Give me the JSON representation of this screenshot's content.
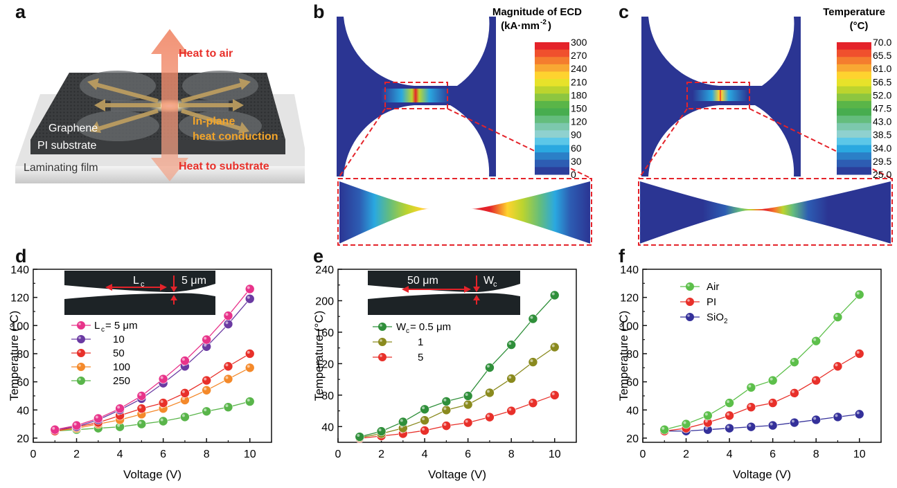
{
  "panels": {
    "a": {
      "letter": "a",
      "heat_to_air": "Heat to air",
      "heat_to_substrate": "Heat to substrate",
      "in_plane_1": "In-plane",
      "in_plane_2": "heat conduction",
      "graphene": "Graphene",
      "pi_substrate": "PI substrate",
      "laminating_film": "Laminating film"
    },
    "b": {
      "letter": "b",
      "colorbar_title_1": "Magnitude of ECD",
      "colorbar_title_2": "(kA·mm",
      "colorbar_title_sup": "-2",
      "colorbar_title_3": ")",
      "ticks": [
        "300",
        "270",
        "240",
        "210",
        "180",
        "150",
        "120",
        "90",
        "60",
        "30",
        "0"
      ]
    },
    "c": {
      "letter": "c",
      "colorbar_title_1": "Temperature",
      "colorbar_title_2": "(°C)",
      "ticks": [
        "70.0",
        "65.5",
        "61.0",
        "56.5",
        "52.0",
        "47.5",
        "43.0",
        "38.5",
        "34.0",
        "29.5",
        "25.0"
      ]
    },
    "d": {
      "letter": "d",
      "inset_lc": "L",
      "inset_lc_sub": "c",
      "inset_width": "5 μm",
      "legend_prefix": "L",
      "legend_prefix_sub": "c",
      "legend_first": " = 5 μm"
    },
    "e": {
      "letter": "e",
      "inset_length": "50 μm",
      "inset_wc": "W",
      "inset_wc_sub": "c",
      "legend_prefix": "W",
      "legend_prefix_sub": "c",
      "legend_first": " = 0.5 μm"
    },
    "f": {
      "letter": "f"
    }
  },
  "colors": {
    "cb": [
      "#e4232a",
      "#f0502d",
      "#f47d2e",
      "#f8a833",
      "#fed32f",
      "#e7e22a",
      "#bcd42e",
      "#8dc640",
      "#5ab548",
      "#47ad4f",
      "#64bd7d",
      "#7cc8ad",
      "#8fd1cf",
      "#5cc7e8",
      "#2aa8e0",
      "#2b7fc7",
      "#2d5db3",
      "#2b3e9b"
    ],
    "field_blue": "#2b3593"
  },
  "chart_data": [
    {
      "id": "d",
      "type": "line",
      "xlabel": "Voltage (V)",
      "ylabel": "Temperature (°C)",
      "xlim": [
        0,
        11
      ],
      "ylim": [
        17,
        140
      ],
      "xticks": [
        0,
        2,
        4,
        6,
        8,
        10
      ],
      "yticks": [
        20,
        40,
        60,
        80,
        100,
        120,
        140
      ],
      "x": [
        1,
        2,
        3,
        4,
        5,
        6,
        7,
        8,
        9,
        10
      ],
      "series": [
        {
          "name": "5 μm",
          "color": "#e8338a",
          "values": [
            26,
            29,
            34,
            41,
            50,
            62,
            75,
            90,
            107,
            126
          ]
        },
        {
          "name": "10",
          "color": "#6a3aa2",
          "values": [
            26,
            28,
            33,
            40,
            48,
            59,
            71,
            85,
            101,
            119
          ]
        },
        {
          "name": "50",
          "color": "#e8302a",
          "values": [
            25,
            28,
            31,
            36,
            41,
            45,
            52,
            61,
            71,
            80
          ]
        },
        {
          "name": "100",
          "color": "#f4892a",
          "values": [
            25,
            27,
            30,
            33,
            37,
            41,
            47,
            54,
            62,
            70
          ]
        },
        {
          "name": "250",
          "color": "#59b54a",
          "values": [
            25,
            26,
            27,
            28,
            30,
            32,
            35,
            39,
            42,
            46
          ]
        }
      ]
    },
    {
      "id": "e",
      "type": "line",
      "xlabel": "Voltage (V)",
      "ylabel": "Temperature (°C)",
      "xlim": [
        0,
        11
      ],
      "ylim": [
        20,
        240
      ],
      "xticks": [
        0,
        2,
        4,
        6,
        8,
        10
      ],
      "yticks": [
        40,
        80,
        120,
        160,
        200,
        240
      ],
      "x": [
        1,
        2,
        3,
        4,
        5,
        6,
        7,
        8,
        9,
        10
      ],
      "series": [
        {
          "name": "0.5 μm",
          "color": "#2f8f3a",
          "values": [
            27,
            34,
            46,
            62,
            72,
            79,
            115,
            144,
            177,
            207
          ]
        },
        {
          "name": "1",
          "color": "#8a8a1e",
          "values": [
            26,
            31,
            38,
            48,
            61,
            68,
            83,
            101,
            122,
            141
          ]
        },
        {
          "name": "5",
          "color": "#e8302a",
          "values": [
            25,
            28,
            31,
            35,
            41,
            45,
            52,
            60,
            70,
            80
          ]
        }
      ]
    },
    {
      "id": "f",
      "type": "line",
      "xlabel": "Voltage (V)",
      "ylabel": "Temperature (°C)",
      "xlim": [
        0,
        11
      ],
      "ylim": [
        17,
        140
      ],
      "xticks": [
        0,
        2,
        4,
        6,
        8,
        10
      ],
      "yticks": [
        20,
        40,
        60,
        80,
        100,
        120,
        140
      ],
      "x": [
        1,
        2,
        3,
        4,
        5,
        6,
        7,
        8,
        9,
        10
      ],
      "series": [
        {
          "name": "Air",
          "color": "#5cbf4a",
          "values": [
            26,
            30,
            36,
            45,
            56,
            61,
            74,
            89,
            106,
            122
          ]
        },
        {
          "name": "PI",
          "color": "#e8302a",
          "values": [
            25,
            27,
            31,
            36,
            42,
            45,
            52,
            61,
            71,
            80
          ]
        },
        {
          "name": "SiO",
          "name_sub": "2",
          "color": "#34309a",
          "values": [
            25,
            25,
            26,
            27,
            28,
            29,
            31,
            33,
            35,
            37
          ]
        }
      ]
    }
  ]
}
